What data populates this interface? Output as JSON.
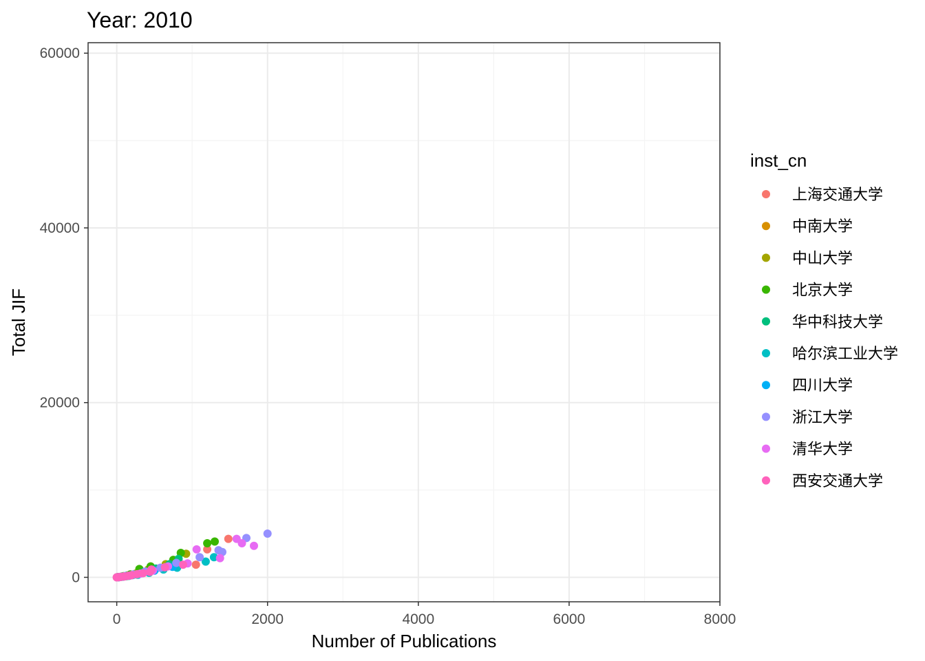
{
  "chart_data": {
    "type": "scatter",
    "title": "Year: 2010",
    "xlabel": "Number of Publications",
    "ylabel": "Total JIF",
    "xlim": [
      -380,
      8000
    ],
    "ylim": [
      -2800,
      61200
    ],
    "x_ticks": [
      0,
      2000,
      4000,
      6000,
      8000
    ],
    "x_tick_labels": [
      "0",
      "2000",
      "4000",
      "6000",
      "8000"
    ],
    "y_ticks": [
      0,
      20000,
      40000,
      60000
    ],
    "y_tick_labels": [
      "0",
      "20000",
      "40000",
      "60000"
    ],
    "grid": true,
    "legend": {
      "title": "inst_cn",
      "position": "right"
    },
    "series": [
      {
        "name": "上海交通大学",
        "color": "#F8766D",
        "points": [
          [
            5,
            5
          ],
          [
            30,
            30
          ],
          [
            60,
            70
          ],
          [
            100,
            120
          ],
          [
            150,
            200
          ],
          [
            230,
            320
          ],
          [
            400,
            700
          ],
          [
            1050,
            1450
          ],
          [
            1200,
            3200
          ],
          [
            1480,
            4400
          ]
        ]
      },
      {
        "name": "中南大学",
        "color": "#D89000",
        "points": [
          [
            5,
            5
          ],
          [
            20,
            15
          ],
          [
            45,
            40
          ],
          [
            80,
            80
          ],
          [
            130,
            140
          ],
          [
            180,
            210
          ],
          [
            260,
            330
          ]
        ]
      },
      {
        "name": "中山大学",
        "color": "#A3A500",
        "points": [
          [
            5,
            5
          ],
          [
            25,
            30
          ],
          [
            70,
            90
          ],
          [
            140,
            200
          ],
          [
            250,
            420
          ],
          [
            420,
            900
          ],
          [
            650,
            1500
          ],
          [
            920,
            2700
          ]
        ]
      },
      {
        "name": "北京大学",
        "color": "#39B600",
        "points": [
          [
            5,
            5
          ],
          [
            30,
            40
          ],
          [
            90,
            140
          ],
          [
            180,
            330
          ],
          [
            300,
            950
          ],
          [
            450,
            1250
          ],
          [
            750,
            2000
          ],
          [
            850,
            2800
          ],
          [
            1200,
            3900
          ],
          [
            1300,
            4100
          ]
        ]
      },
      {
        "name": "华中科技大学",
        "color": "#00BF7D",
        "points": [
          [
            5,
            5
          ],
          [
            25,
            25
          ],
          [
            70,
            80
          ],
          [
            130,
            170
          ],
          [
            220,
            320
          ],
          [
            360,
            620
          ],
          [
            520,
            1000
          ],
          [
            700,
            1500
          ],
          [
            820,
            2100
          ]
        ]
      },
      {
        "name": "哈尔滨工业大学",
        "color": "#00BFC4",
        "points": [
          [
            5,
            5
          ],
          [
            30,
            25
          ],
          [
            80,
            70
          ],
          [
            160,
            160
          ],
          [
            280,
            300
          ],
          [
            430,
            520
          ],
          [
            620,
            900
          ],
          [
            800,
            1100
          ],
          [
            1180,
            1800
          ],
          [
            1290,
            2300
          ]
        ]
      },
      {
        "name": "四川大学",
        "color": "#00B0F6",
        "points": [
          [
            5,
            5
          ],
          [
            25,
            20
          ],
          [
            60,
            60
          ],
          [
            120,
            130
          ],
          [
            210,
            260
          ],
          [
            340,
            480
          ],
          [
            500,
            760
          ],
          [
            740,
            1200
          ]
        ]
      },
      {
        "name": "浙江大学",
        "color": "#9590FF",
        "points": [
          [
            5,
            5
          ],
          [
            40,
            45
          ],
          [
            110,
            140
          ],
          [
            220,
            330
          ],
          [
            380,
            660
          ],
          [
            580,
            1100
          ],
          [
            790,
            1650
          ],
          [
            1100,
            2300
          ],
          [
            1350,
            3100
          ],
          [
            1400,
            2900
          ],
          [
            1720,
            4500
          ],
          [
            2000,
            5000
          ]
        ]
      },
      {
        "name": "清华大学",
        "color": "#E76BF3",
        "points": [
          [
            5,
            5
          ],
          [
            35,
            30
          ],
          [
            90,
            90
          ],
          [
            180,
            210
          ],
          [
            310,
            420
          ],
          [
            480,
            780
          ],
          [
            680,
            1250
          ],
          [
            940,
            1600
          ],
          [
            1060,
            3200
          ],
          [
            1370,
            2200
          ],
          [
            1590,
            4400
          ],
          [
            1660,
            3900
          ],
          [
            1820,
            3600
          ]
        ]
      },
      {
        "name": "西安交通大学",
        "color": "#FF62BC",
        "points": [
          [
            0,
            0
          ],
          [
            10,
            10
          ],
          [
            30,
            25
          ],
          [
            60,
            60
          ],
          [
            100,
            100
          ],
          [
            150,
            170
          ],
          [
            200,
            250
          ],
          [
            270,
            360
          ],
          [
            350,
            480
          ],
          [
            440,
            620
          ],
          [
            460,
            900
          ],
          [
            640,
            1150
          ],
          [
            880,
            1450
          ]
        ]
      }
    ]
  }
}
